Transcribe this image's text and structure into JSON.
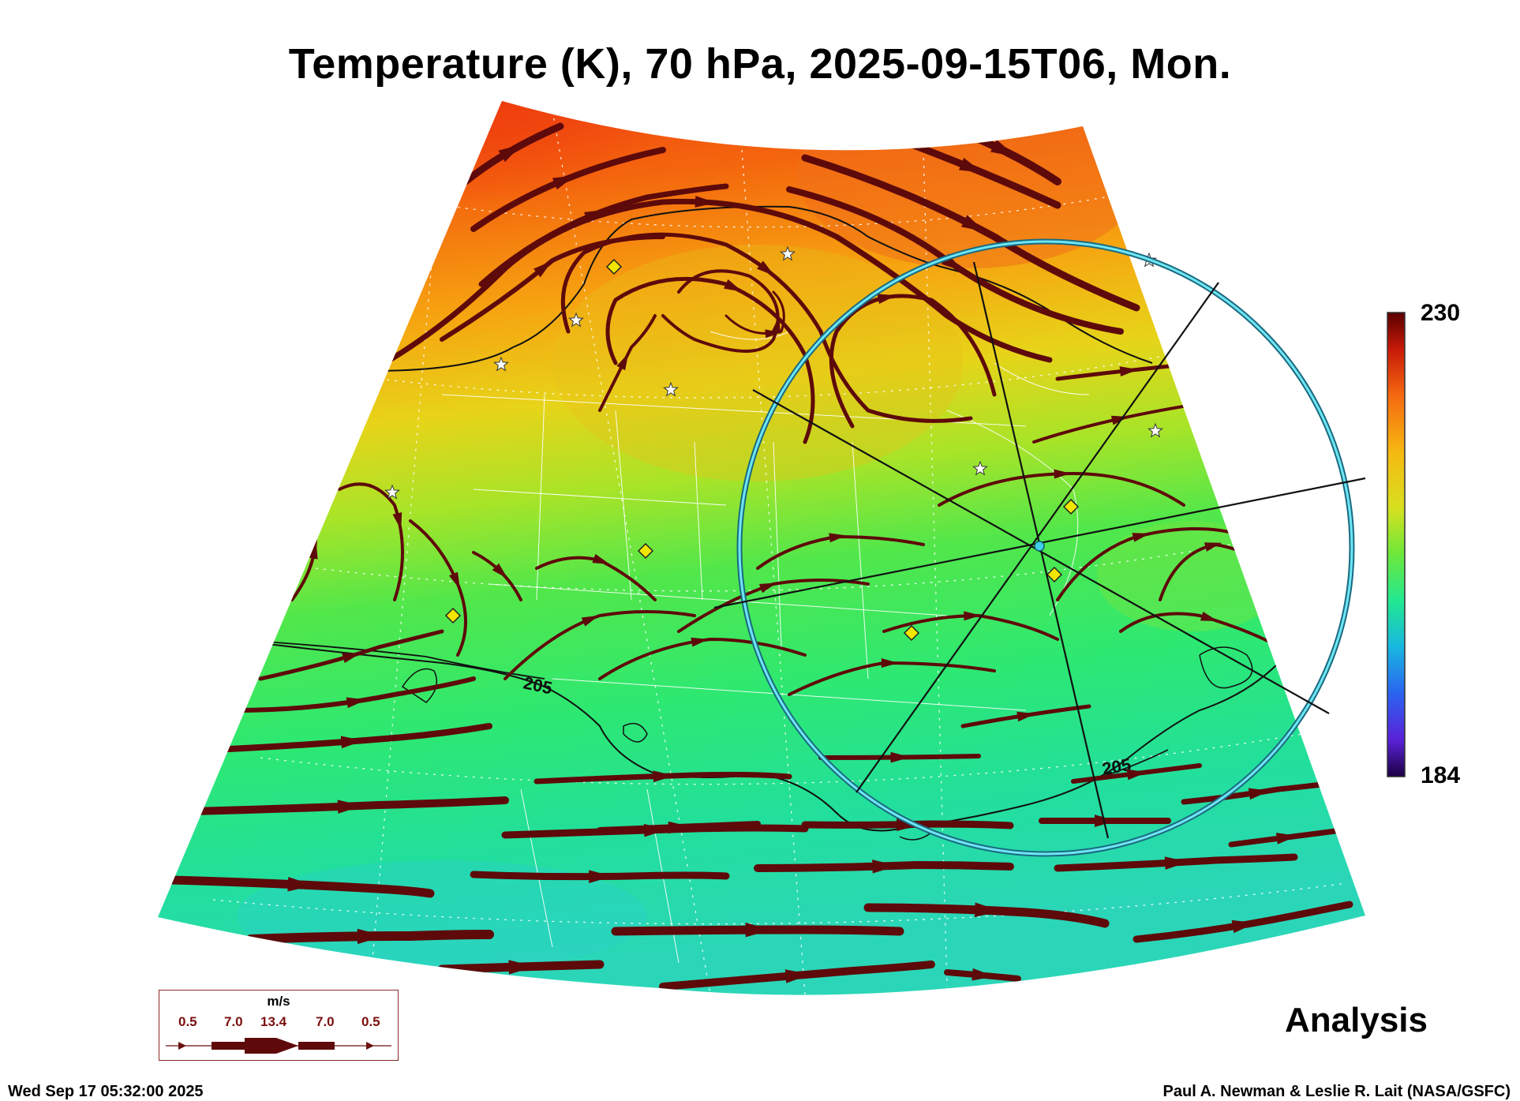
{
  "title": "Temperature (K), 70 hPa, 2025-09-15T06, Mon.",
  "colorbar": {
    "max": "230",
    "min": "184"
  },
  "contour_labels": [
    "205",
    "205"
  ],
  "legend": {
    "unit": "m/s",
    "values": [
      "0.5",
      "7.0",
      "13.4",
      "7.0",
      "0.5"
    ]
  },
  "analysis_label": "Analysis",
  "timestamp": "Wed Sep 17 05:32:00 2025",
  "credit": "Paul A. Newman & Leslie R. Lait (NASA/GSFC)",
  "colors": {
    "warm": "#f25a12",
    "mid": "#e9d81c",
    "cool": "#2ee89a",
    "streamline": "#5e0a0a",
    "ring": "#3fd0e6",
    "marker_diamond": "#f2e600"
  }
}
